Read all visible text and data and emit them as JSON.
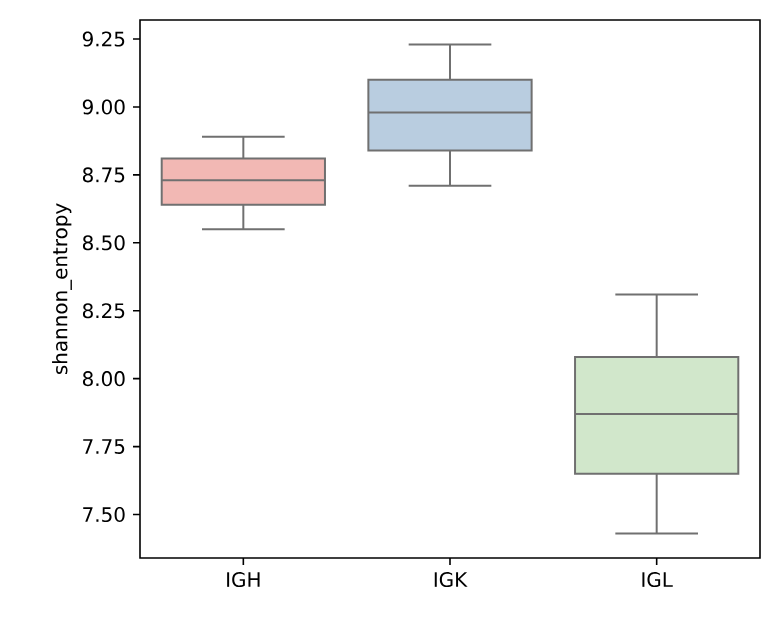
{
  "chart_data": {
    "type": "box",
    "ylabel": "shannon_entropy",
    "categories": [
      "IGH",
      "IGK",
      "IGL"
    ],
    "colors": [
      "#f2b8b4",
      "#b9cde0",
      "#d1e7cb"
    ],
    "boxes": [
      {
        "low": 8.55,
        "q1": 8.64,
        "median": 8.73,
        "q3": 8.81,
        "high": 8.89
      },
      {
        "low": 8.71,
        "q1": 8.84,
        "median": 8.98,
        "q3": 9.1,
        "high": 9.23
      },
      {
        "low": 7.43,
        "q1": 7.65,
        "median": 7.87,
        "q3": 8.08,
        "high": 8.31
      }
    ],
    "ylim": [
      7.34,
      9.32
    ],
    "yticks": [
      {
        "value": 7.5,
        "label": "7.50"
      },
      {
        "value": 7.75,
        "label": "7.75"
      },
      {
        "value": 8.0,
        "label": "8.00"
      },
      {
        "value": 8.25,
        "label": "8.25"
      },
      {
        "value": 8.5,
        "label": "8.50"
      },
      {
        "value": 8.75,
        "label": "8.75"
      },
      {
        "value": 9.0,
        "label": "9.00"
      },
      {
        "value": 9.25,
        "label": "9.25"
      }
    ],
    "grid": false
  }
}
